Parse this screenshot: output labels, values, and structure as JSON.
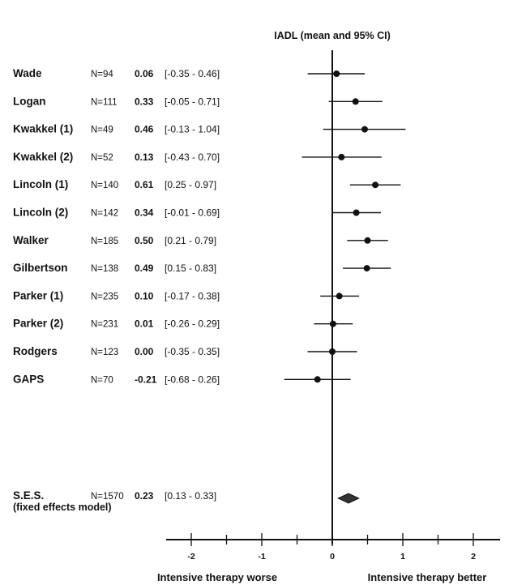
{
  "chart_data": {
    "type": "forest",
    "title": "IADL (mean and 95% CI)",
    "x_ticks": [
      "-2",
      "-1",
      "0",
      "1",
      "2"
    ],
    "xlim": [
      -2.5,
      2.5
    ],
    "x_footer_left": "Intensive therapy worse",
    "x_footer_right": "Intensive therapy better",
    "studies": [
      {
        "name": "Wade",
        "n": "N=94",
        "mean": 0.06,
        "lo": -0.35,
        "hi": 0.46,
        "mean_text": "0.06",
        "ci_text": "[-0.35 - 0.46]"
      },
      {
        "name": "Logan",
        "n": "N=111",
        "mean": 0.33,
        "lo": -0.05,
        "hi": 0.71,
        "mean_text": "0.33",
        "ci_text": "[-0.05 - 0.71]"
      },
      {
        "name": "Kwakkel (1)",
        "n": "N=49",
        "mean": 0.46,
        "lo": -0.13,
        "hi": 1.04,
        "mean_text": "0.46",
        "ci_text": "[-0.13 - 1.04]"
      },
      {
        "name": "Kwakkel (2)",
        "n": "N=52",
        "mean": 0.13,
        "lo": -0.43,
        "hi": 0.7,
        "mean_text": "0.13",
        "ci_text": "[-0.43 - 0.70]"
      },
      {
        "name": "Lincoln (1)",
        "n": "N=140",
        "mean": 0.61,
        "lo": 0.25,
        "hi": 0.97,
        "mean_text": "0.61",
        "ci_text": "[0.25 - 0.97]"
      },
      {
        "name": "Lincoln (2)",
        "n": "N=142",
        "mean": 0.34,
        "lo": -0.01,
        "hi": 0.69,
        "mean_text": "0.34",
        "ci_text": "[-0.01 - 0.69]"
      },
      {
        "name": "Walker",
        "n": "N=185",
        "mean": 0.5,
        "lo": 0.21,
        "hi": 0.79,
        "mean_text": "0.50",
        "ci_text": "[0.21 - 0.79]"
      },
      {
        "name": "Gilbertson",
        "n": "N=138",
        "mean": 0.49,
        "lo": 0.15,
        "hi": 0.83,
        "mean_text": "0.49",
        "ci_text": "[0.15 - 0.83]"
      },
      {
        "name": "Parker (1)",
        "n": "N=235",
        "mean": 0.1,
        "lo": -0.17,
        "hi": 0.38,
        "mean_text": "0.10",
        "ci_text": "[-0.17 - 0.38]"
      },
      {
        "name": "Parker (2)",
        "n": "N=231",
        "mean": 0.01,
        "lo": -0.26,
        "hi": 0.29,
        "mean_text": "0.01",
        "ci_text": "[-0.26 - 0.29]"
      },
      {
        "name": "Rodgers",
        "n": "N=123",
        "mean": 0.0,
        "lo": -0.35,
        "hi": 0.35,
        "mean_text": "0.00",
        "ci_text": "[-0.35 - 0.35]"
      },
      {
        "name": "GAPS",
        "n": "N=70",
        "mean": -0.21,
        "lo": -0.68,
        "hi": 0.26,
        "mean_text": "-0.21",
        "ci_text": "[-0.68 - 0.26]"
      }
    ],
    "summary": {
      "name": "S.E.S.",
      "subtitle": "(fixed effects model)",
      "n": "N=1570",
      "mean": 0.23,
      "lo": 0.13,
      "hi": 0.33,
      "mean_text": "0.23",
      "ci_text": "[0.13 - 0.33]"
    }
  }
}
